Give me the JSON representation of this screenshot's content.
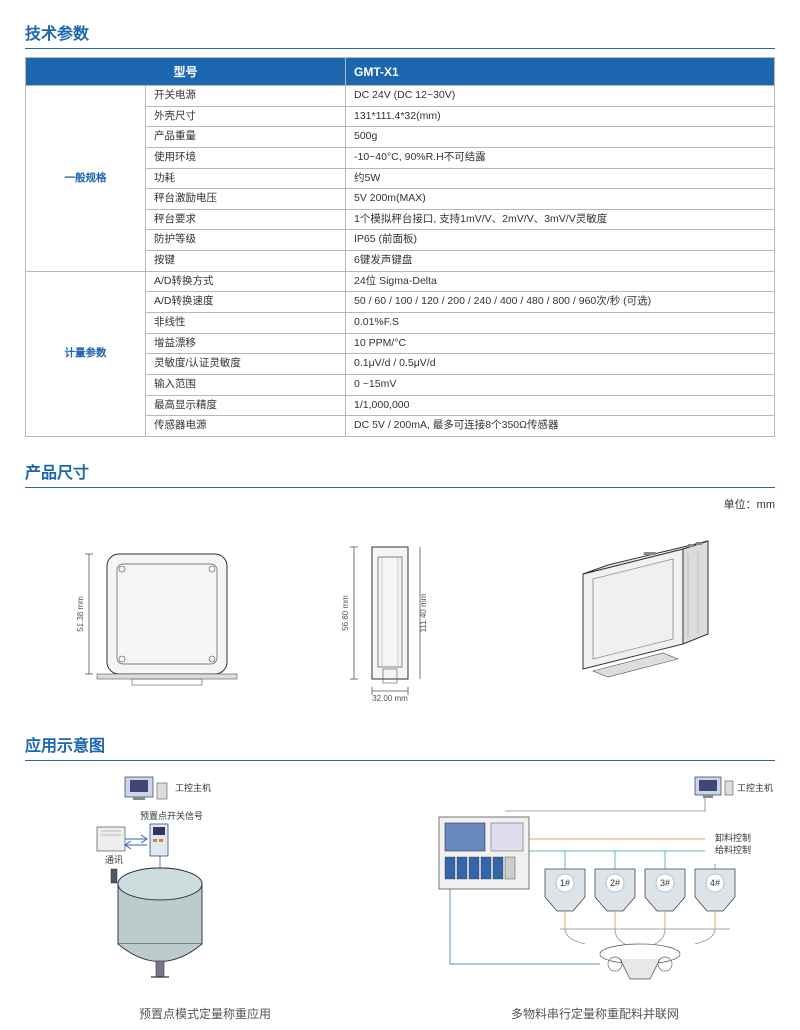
{
  "sections": {
    "specs_title": "技术参数",
    "dims_title": "产品尺寸",
    "app_title": "应用示意图"
  },
  "unit_label": "单位：mm",
  "table": {
    "header_model": "型号",
    "header_value": "GMT-X1",
    "groups": [
      {
        "name": "一般规格",
        "rows": [
          {
            "label": "开关电源",
            "value": "DC 24V (DC 12~30V)"
          },
          {
            "label": "外壳尺寸",
            "value": "131*111.4*32(mm)"
          },
          {
            "label": "产品重量",
            "value": "500g"
          },
          {
            "label": "使用环境",
            "value": "-10~40°C, 90%R.H不可结露"
          },
          {
            "label": "功耗",
            "value": "约5W"
          },
          {
            "label": "秤台激励电压",
            "value": "5V 200m(MAX)"
          },
          {
            "label": "秤台要求",
            "value": "1个模拟秤台接口, 支持1mV/V、2mV/V、3mV/V灵敏度"
          },
          {
            "label": "防护等级",
            "value": "IP65 (前面板)"
          },
          {
            "label": "按键",
            "value": "6键发声键盘"
          }
        ]
      },
      {
        "name": "计量参数",
        "rows": [
          {
            "label": "A/D转换方式",
            "value": "24位 Sigma-Delta"
          },
          {
            "label": "A/D转换速度",
            "value": "50 / 60 / 100 / 120 / 200 / 240 / 400 / 480 / 800 / 960次/秒 (可选)"
          },
          {
            "label": "非线性",
            "value": "0.01%F.S"
          },
          {
            "label": "增益漂移",
            "value": "10 PPM/°C"
          },
          {
            "label": "灵敏度/认证灵敏度",
            "value": "0.1μV/d / 0.5μV/d"
          },
          {
            "label": "输入范围",
            "value": "0 ~15mV"
          },
          {
            "label": "最高显示精度",
            "value": "1/1,000,000"
          },
          {
            "label": "传感器电源",
            "value": "DC 5V / 200mA, 最多可连接8个350Ω传感器"
          }
        ]
      }
    ]
  },
  "dimensions": {
    "front_h": "51.38 mm",
    "side_h": "56.80 mm",
    "side_h2": "111.40 mm",
    "width": "32.00 mm"
  },
  "app": {
    "left": {
      "host": "工控主机",
      "preset_signal": "预置点开关信号",
      "comm": "通讯",
      "caption": "预置点模式定量称重应用"
    },
    "right": {
      "host": "工控主机",
      "unload": "卸料控制",
      "feed": "给料控制",
      "h1": "1#",
      "h2": "2#",
      "h3": "3#",
      "h4": "4#",
      "caption": "多物料串行定量称重配料并联网"
    }
  },
  "colors": {
    "brand": "#1d66b0",
    "border": "#b8b8b8",
    "orange": "#e08020"
  }
}
